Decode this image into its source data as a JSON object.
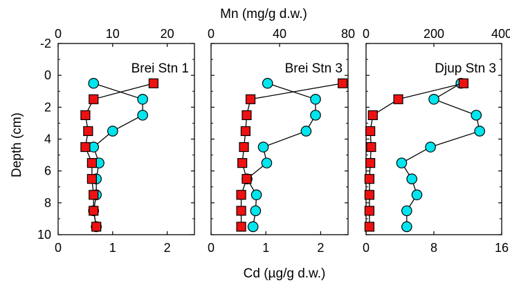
{
  "figure": {
    "top_axis_title": "Mn (mg/g d.w.)",
    "bottom_axis_title": "Cd (µg/g d.w.)",
    "y_axis_title": "Depth (cm)"
  },
  "chart_data": [
    {
      "type": "line",
      "title": "Brei Stn 1",
      "ylabel": "Depth (cm)",
      "ylim": [
        10,
        -2
      ],
      "yticks": [
        -2,
        0,
        2,
        4,
        6,
        8,
        10
      ],
      "x_top": {
        "label": "Mn (mg/g d.w.)",
        "lim": [
          0,
          25
        ],
        "ticks": [
          0,
          10,
          20
        ]
      },
      "x_bottom": {
        "label": "Cd (µg/g d.w.)",
        "lim": [
          0,
          2.5
        ],
        "ticks": [
          0,
          1,
          2
        ]
      },
      "series": [
        {
          "marker": "circle",
          "color": "#00E5EE",
          "axis": "top",
          "depth": [
            0.5,
            1.5,
            2.5,
            3.5,
            4.5,
            5.5,
            6.5,
            7.5,
            8.5,
            9.5
          ],
          "values": [
            6.5,
            15.5,
            15.5,
            10,
            6.5,
            7.5,
            7,
            7,
            6.5,
            7
          ]
        },
        {
          "marker": "square",
          "color": "#EE1111",
          "axis": "bottom",
          "depth": [
            0.5,
            1.5,
            2.5,
            3.5,
            4.5,
            5.5,
            6.5,
            7.5,
            8.5,
            9.5
          ],
          "values": [
            1.75,
            0.65,
            0.5,
            0.55,
            0.5,
            0.62,
            0.62,
            0.65,
            0.65,
            0.7
          ]
        }
      ]
    },
    {
      "type": "line",
      "title": "Brei Stn 3",
      "ylabel": "Depth (cm)",
      "ylim": [
        10,
        -2
      ],
      "yticks": [
        -2,
        0,
        2,
        4,
        6,
        8,
        10
      ],
      "x_top": {
        "label": "Mn (mg/g d.w.)",
        "lim": [
          0,
          80
        ],
        "ticks": [
          0,
          40,
          80
        ]
      },
      "x_bottom": {
        "label": "Cd (µg/g d.w.)",
        "lim": [
          0,
          2.5
        ],
        "ticks": [
          0,
          1,
          2
        ]
      },
      "series": [
        {
          "marker": "circle",
          "color": "#00E5EE",
          "axis": "top",
          "depth": [
            0.5,
            1.5,
            2.5,
            3.5,
            4.5,
            5.5,
            6.5,
            7.5,
            8.5,
            9.5
          ],
          "values": [
            33,
            61,
            61,
            55.5,
            30.5,
            32.5,
            21,
            26.5,
            26,
            24.5
          ]
        },
        {
          "marker": "square",
          "color": "#EE1111",
          "axis": "bottom",
          "depth": [
            0.5,
            1.5,
            2.5,
            3.5,
            4.5,
            5.5,
            6.5,
            7.5,
            8.5,
            9.5
          ],
          "values": [
            2.4,
            0.72,
            0.65,
            0.63,
            0.6,
            0.57,
            0.65,
            0.55,
            0.55,
            0.55
          ]
        }
      ]
    },
    {
      "type": "line",
      "title": "Djup Stn 3",
      "ylabel": "Depth (cm)",
      "ylim": [
        10,
        -2
      ],
      "yticks": [
        -2,
        0,
        2,
        4,
        6,
        8,
        10
      ],
      "x_top": {
        "label": "Mn (mg/g d.w.)",
        "lim": [
          0,
          400
        ],
        "ticks": [
          0,
          200,
          400
        ]
      },
      "x_bottom": {
        "label": "Cd (µg/g d.w.)",
        "lim": [
          0,
          16
        ],
        "ticks": [
          0,
          8,
          16
        ]
      },
      "series": [
        {
          "marker": "circle",
          "color": "#00E5EE",
          "axis": "top",
          "depth": [
            0.5,
            1.5,
            2.5,
            3.5,
            4.5,
            5.5,
            6.5,
            7.5,
            8.5,
            9.5
          ],
          "values": [
            280,
            200,
            325,
            335,
            190,
            105,
            135,
            150,
            120,
            120
          ]
        },
        {
          "marker": "square",
          "color": "#EE1111",
          "axis": "bottom",
          "depth": [
            0.5,
            1.5,
            2.5,
            3.5,
            4.5,
            5.5,
            6.5,
            7.5,
            8.5,
            9.5
          ],
          "values": [
            11.5,
            3.8,
            0.8,
            0.5,
            0.6,
            0.5,
            0.4,
            0.4,
            0.4,
            0.4
          ]
        }
      ]
    }
  ]
}
